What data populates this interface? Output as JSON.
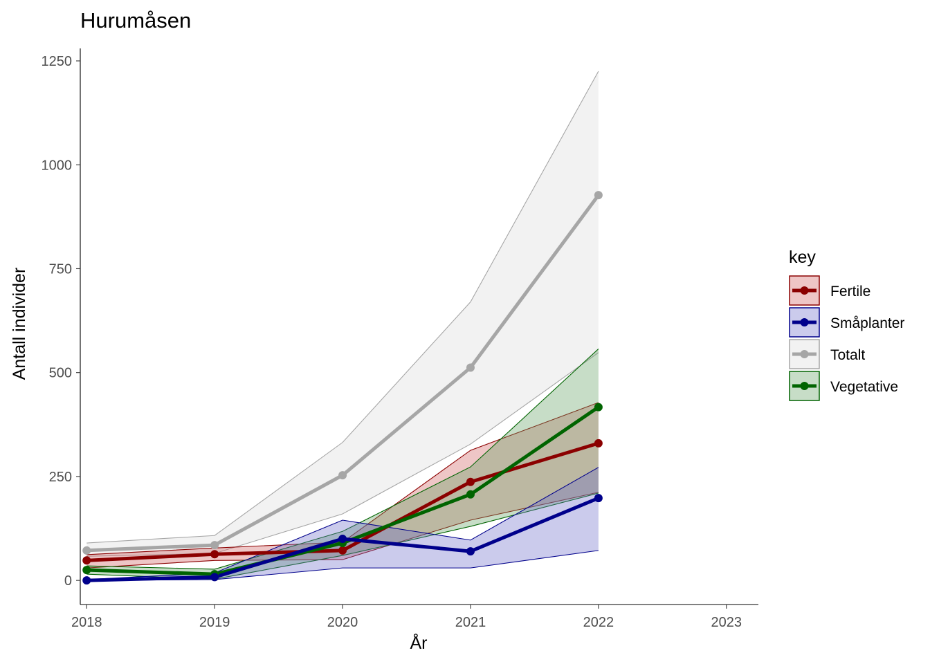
{
  "chart_data": {
    "type": "line",
    "title": "Hurumåsen",
    "xlabel": "År",
    "ylabel": "Antall individer",
    "x": [
      2018,
      2019,
      2020,
      2021,
      2022
    ],
    "x_ticks": [
      "2018",
      "2019",
      "2020",
      "2021",
      "2022",
      "2023"
    ],
    "xlim": [
      2017.95,
      2023.25
    ],
    "y_ticks": [
      "0",
      "250",
      "500",
      "750",
      "1000",
      "1250"
    ],
    "ylim": [
      -58,
      1280
    ],
    "grid": false,
    "legend_title": "key",
    "legend_position": "right",
    "series": [
      {
        "name": "Totalt",
        "color": "#a6a6a6",
        "fill": "#d9d9d9",
        "values": [
          72,
          85,
          253,
          512,
          927
        ],
        "lower": [
          58,
          65,
          160,
          328,
          548
        ],
        "upper": [
          90,
          108,
          332,
          670,
          1225
        ]
      },
      {
        "name": "Fertile",
        "color": "#8b0000",
        "fill": "#cd5c5c",
        "values": [
          48,
          63,
          72,
          237,
          330
        ],
        "lower": [
          30,
          48,
          50,
          145,
          212
        ],
        "upper": [
          62,
          78,
          92,
          313,
          428
        ]
      },
      {
        "name": "Vegetative",
        "color": "#006400",
        "fill": "#5f9e5f",
        "values": [
          25,
          15,
          90,
          207,
          417
        ],
        "lower": [
          15,
          3,
          60,
          130,
          210
        ],
        "upper": [
          35,
          27,
          118,
          273,
          557
        ]
      },
      {
        "name": "Småplanter",
        "color": "#00008b",
        "fill": "#6a6ac8",
        "values": [
          0,
          8,
          100,
          70,
          198
        ],
        "lower": [
          0,
          2,
          30,
          30,
          72
        ],
        "upper": [
          2,
          18,
          145,
          97,
          272
        ]
      }
    ],
    "legend_order": [
      "Fertile",
      "Småplanter",
      "Totalt",
      "Vegetative"
    ]
  }
}
